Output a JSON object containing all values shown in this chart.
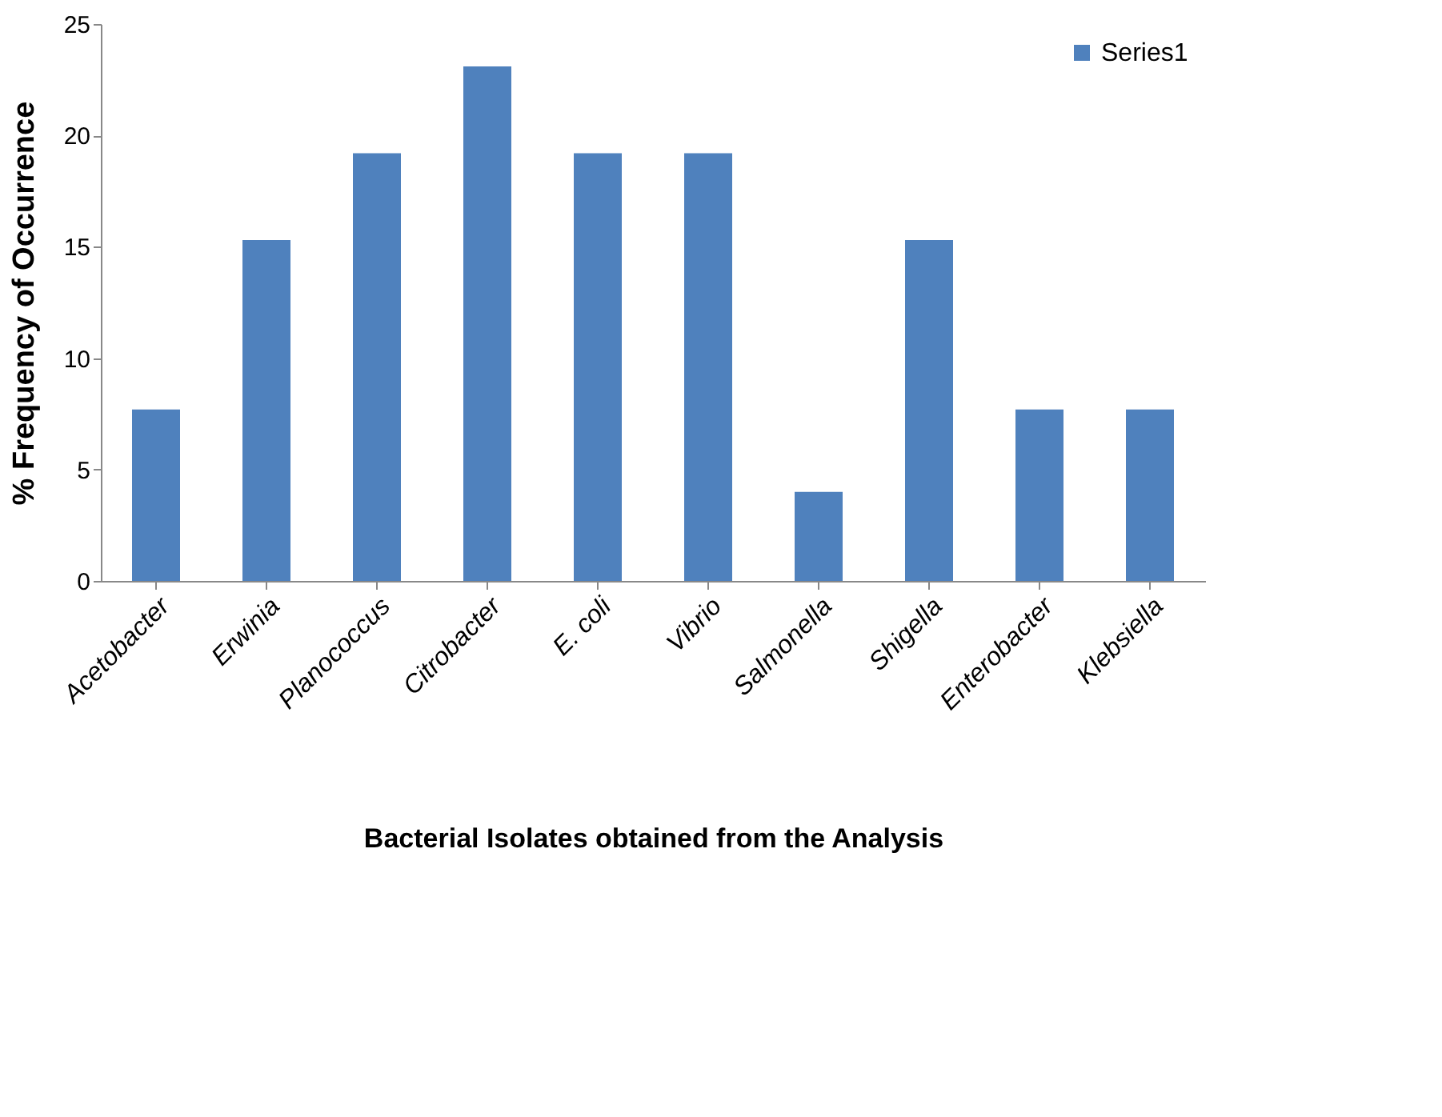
{
  "chart_data": {
    "type": "bar",
    "xlabel": "Bacterial Isolates obtained from the Analysis",
    "ylabel": "% Frequency of Occurrence",
    "categories": [
      "Acetobacter",
      "Erwinia",
      "Planococcus",
      "Citrobacter",
      "E. coli",
      "Vibrio",
      "Salmonella",
      "Shigella",
      "Enterobacter",
      "Klebsiella"
    ],
    "series": [
      {
        "name": "Series1",
        "color": "#4f81bd",
        "values": [
          7.7,
          15.3,
          19.2,
          23.1,
          19.2,
          19.2,
          4.0,
          15.3,
          7.7,
          7.7
        ]
      }
    ],
    "ylim": [
      0,
      25
    ],
    "yticks": [
      0,
      5,
      10,
      15,
      20,
      25
    ],
    "grid": false,
    "legend": "top right"
  }
}
